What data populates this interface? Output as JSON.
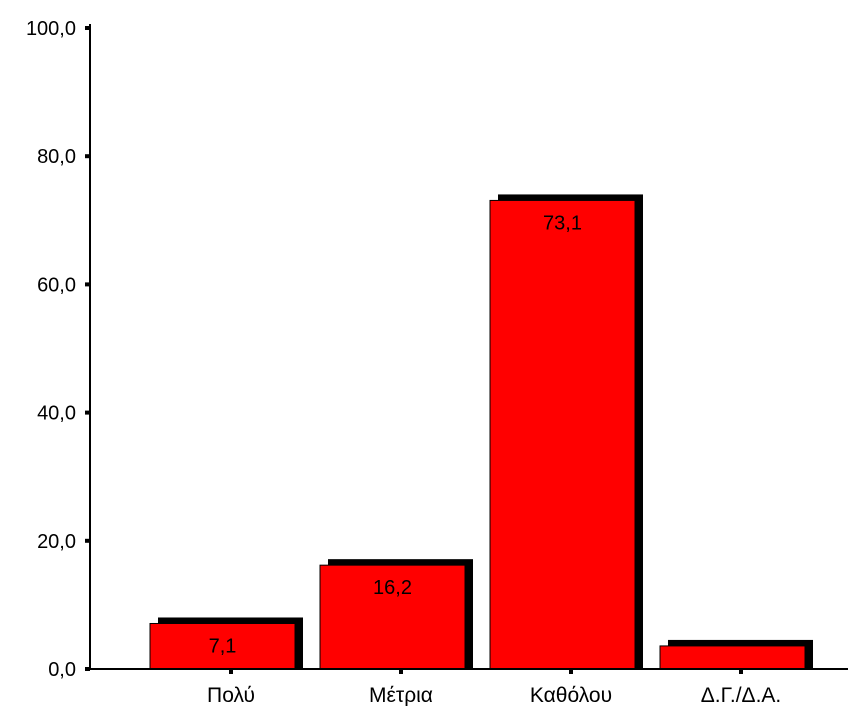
{
  "chart_data": {
    "type": "bar",
    "categories": [
      "Πολύ",
      "Μέτρια",
      "Καθόλου",
      "Δ.Γ./Δ.Α."
    ],
    "values": [
      7.1,
      16.2,
      73.1,
      3.6
    ],
    "data_labels": [
      "7,1",
      "16,2",
      "73,1",
      ""
    ],
    "y_ticks": [
      0,
      20,
      40,
      60,
      80,
      100
    ],
    "y_tick_labels": [
      "0,0",
      "20,0",
      "40,0",
      "60,0",
      "80,0",
      "100,0"
    ],
    "ylim": [
      0,
      100
    ],
    "title": "",
    "xlabel": "",
    "ylabel": "",
    "grid": false,
    "colors": {
      "bar": "#ff0000",
      "shadow": "#000000",
      "axis": "#000000"
    }
  }
}
